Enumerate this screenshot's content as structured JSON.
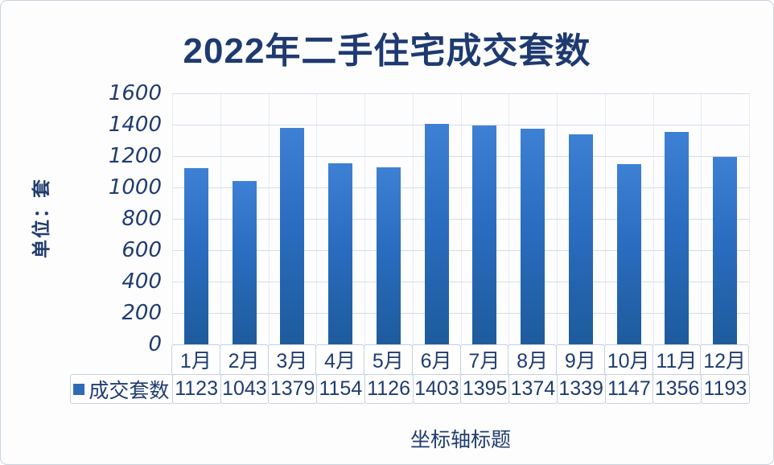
{
  "chart_data": {
    "type": "bar",
    "title": "2022年二手住宅成交套数",
    "ylabel": "单位：套",
    "xlabel": "坐标轴标题",
    "categories": [
      "1月",
      "2月",
      "3月",
      "4月",
      "5月",
      "6月",
      "7月",
      "8月",
      "9月",
      "10月",
      "11月",
      "12月"
    ],
    "series": [
      {
        "name": "成交套数",
        "values": [
          1123,
          1043,
          1379,
          1154,
          1126,
          1403,
          1395,
          1374,
          1339,
          1147,
          1356,
          1193
        ]
      }
    ],
    "ylim": [
      0,
      1600
    ],
    "yticks": [
      0,
      200,
      400,
      600,
      800,
      1000,
      1200,
      1400,
      1600
    ],
    "grid": true,
    "legend_position": "table-left",
    "data_table_shown": true
  },
  "colors": {
    "title_text": "#1e3a70",
    "axis_text": "#1f3c70",
    "bar_top": "#3e80d4",
    "bar_bottom": "#1e5b9c",
    "gridline": "#d5dde8",
    "table_border": "#c6d0e2",
    "legend_marker": "#2d6cb5",
    "canvas_background": "#fdfdfe"
  }
}
